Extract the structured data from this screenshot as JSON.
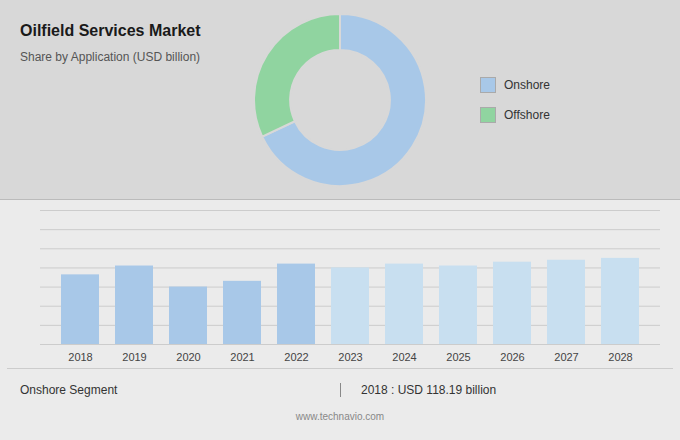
{
  "chart_data": [
    {
      "type": "donut",
      "title": "Oilfield Services Market",
      "subtitle": "Share by Application (USD billion)",
      "categories": [
        "Onshore",
        "Offshore"
      ],
      "values": [
        68,
        32
      ],
      "colors": [
        "#a8c8e8",
        "#90d4a0"
      ],
      "legend": "right"
    },
    {
      "type": "bar",
      "categories": [
        "2018",
        "2019",
        "2020",
        "2021",
        "2022",
        "2023",
        "2024",
        "2025",
        "2026",
        "2027",
        "2028"
      ],
      "values": [
        118.19,
        120.5,
        115.0,
        116.5,
        121.0,
        120.0,
        121.0,
        120.5,
        121.5,
        122.0,
        122.5
      ],
      "colors": [
        "#a8c8e8",
        "#a8c8e8",
        "#a8c8e8",
        "#a8c8e8",
        "#a8c8e8",
        "#c8dff0",
        "#c8dff0",
        "#c8dff0",
        "#c8dff0",
        "#c8dff0",
        "#c8dff0"
      ],
      "ylim": [
        100,
        135
      ],
      "yticks": [
        100,
        105,
        110,
        115,
        120,
        125,
        130,
        135
      ],
      "grid": true,
      "tick_labels": "x",
      "annotations": [
        "Onshore Segment",
        "2018 : USD 118.19 billion",
        "www.technavio.com"
      ]
    }
  ]
}
